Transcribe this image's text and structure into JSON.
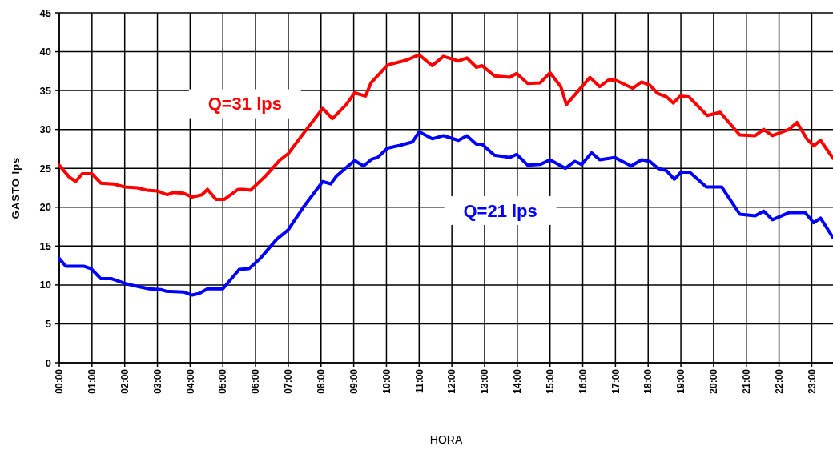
{
  "chart_data": {
    "type": "line",
    "xlabel": "HORA",
    "ylabel": "GASTO lps",
    "xlim": [
      0,
      23.65
    ],
    "ylim": [
      0,
      45
    ],
    "xticks": [
      {
        "value": 0,
        "label": "00:00"
      },
      {
        "value": 1,
        "label": "01:00"
      },
      {
        "value": 2,
        "label": "02:00"
      },
      {
        "value": 3,
        "label": "03:00"
      },
      {
        "value": 4,
        "label": "04:00"
      },
      {
        "value": 5,
        "label": "05:00"
      },
      {
        "value": 6,
        "label": "06:00"
      },
      {
        "value": 7,
        "label": "07:00"
      },
      {
        "value": 8,
        "label": "08:00"
      },
      {
        "value": 9,
        "label": "09:00"
      },
      {
        "value": 10,
        "label": "10:00"
      },
      {
        "value": 11,
        "label": "11:00"
      },
      {
        "value": 12,
        "label": "12:00"
      },
      {
        "value": 13,
        "label": "13:00"
      },
      {
        "value": 14,
        "label": "14:00"
      },
      {
        "value": 15,
        "label": "15:00"
      },
      {
        "value": 16,
        "label": "16:00"
      },
      {
        "value": 17,
        "label": "17:00"
      },
      {
        "value": 18,
        "label": "18:00"
      },
      {
        "value": 19,
        "label": "19:00"
      },
      {
        "value": 20,
        "label": "20:00"
      },
      {
        "value": 21,
        "label": "21:00"
      },
      {
        "value": 22,
        "label": "22:00"
      },
      {
        "value": 23,
        "label": "23:00"
      }
    ],
    "yticks": [
      0,
      5,
      10,
      15,
      20,
      25,
      30,
      35,
      40,
      45
    ],
    "grid": true,
    "marker": "none",
    "line_style": "solid",
    "series": [
      {
        "name": "Q=31 lps",
        "color": "#ff0000",
        "x": [
          0,
          0.3,
          0.5,
          0.7,
          1.0,
          1.27,
          1.65,
          2.0,
          2.38,
          2.67,
          3.0,
          3.3,
          3.47,
          3.8,
          4.06,
          4.36,
          4.53,
          4.79,
          5.04,
          5.47,
          5.64,
          5.85,
          6.3,
          6.75,
          7.0,
          7.5,
          8.05,
          8.35,
          8.77,
          9.03,
          9.36,
          9.53,
          10.04,
          10.6,
          11.0,
          11.4,
          11.74,
          12.2,
          12.46,
          12.75,
          12.92,
          13.3,
          13.77,
          13.98,
          14.32,
          14.7,
          15.0,
          15.33,
          15.5,
          16.22,
          16.52,
          16.8,
          17.02,
          17.53,
          17.8,
          18.05,
          18.3,
          18.56,
          18.77,
          18.98,
          19.24,
          19.8,
          20.2,
          20.8,
          21.27,
          21.53,
          21.8,
          22.3,
          22.55,
          22.85,
          23.06,
          23.27,
          23.65
        ],
        "values": [
          25.4,
          23.9,
          23.3,
          24.3,
          24.3,
          23.1,
          23.0,
          22.6,
          22.5,
          22.2,
          22.1,
          21.6,
          21.9,
          21.8,
          21.3,
          21.6,
          22.3,
          21.0,
          21.0,
          22.3,
          22.3,
          22.2,
          24.0,
          26.1,
          26.9,
          29.7,
          32.7,
          31.4,
          33.2,
          34.7,
          34.3,
          36.0,
          38.3,
          38.9,
          39.6,
          38.2,
          39.4,
          38.8,
          39.2,
          38.0,
          38.2,
          36.9,
          36.7,
          37.2,
          35.9,
          36.0,
          37.3,
          35.5,
          33.2,
          36.7,
          35.5,
          36.4,
          36.3,
          35.3,
          36.1,
          35.7,
          34.6,
          34.2,
          33.4,
          34.3,
          34.2,
          31.8,
          32.2,
          29.3,
          29.2,
          30.0,
          29.2,
          30.0,
          30.9,
          28.8,
          27.9,
          28.6,
          26.3
        ]
      },
      {
        "name": "Q=21 lps",
        "color": "#0000ff",
        "x": [
          0,
          0.2,
          0.76,
          0.97,
          1.27,
          1.6,
          2.0,
          2.4,
          2.75,
          3.1,
          3.26,
          3.8,
          4.06,
          4.28,
          4.53,
          5.0,
          5.5,
          5.8,
          6.14,
          6.65,
          7.0,
          7.46,
          8.05,
          8.3,
          8.47,
          8.8,
          9.03,
          9.3,
          9.56,
          9.73,
          10.03,
          10.36,
          10.8,
          11.0,
          11.4,
          11.74,
          12.2,
          12.46,
          12.75,
          12.92,
          13.3,
          13.77,
          13.98,
          14.32,
          14.7,
          15.0,
          15.47,
          15.76,
          15.97,
          16.27,
          16.52,
          16.98,
          17.48,
          17.8,
          18.05,
          18.3,
          18.56,
          18.8,
          19.0,
          19.27,
          19.78,
          20.25,
          20.8,
          21.27,
          21.53,
          21.8,
          22.3,
          22.8,
          23.06,
          23.27,
          23.65
        ],
        "values": [
          13.4,
          12.4,
          12.4,
          12.1,
          10.8,
          10.8,
          10.2,
          9.8,
          9.5,
          9.4,
          9.2,
          9.1,
          8.7,
          8.9,
          9.5,
          9.5,
          12.0,
          12.1,
          13.4,
          15.9,
          17.1,
          20.0,
          23.3,
          23.0,
          24.0,
          25.2,
          26.0,
          25.3,
          26.2,
          26.4,
          27.6,
          27.9,
          28.4,
          29.7,
          28.8,
          29.2,
          28.6,
          29.2,
          28.1,
          28.1,
          26.7,
          26.4,
          26.8,
          25.4,
          25.5,
          26.1,
          25.0,
          25.9,
          25.5,
          27.0,
          26.1,
          26.4,
          25.3,
          26.1,
          25.9,
          25.0,
          24.7,
          23.6,
          24.5,
          24.5,
          22.6,
          22.6,
          19.1,
          18.9,
          19.5,
          18.4,
          19.3,
          19.3,
          18.0,
          18.6,
          16.1
        ]
      }
    ]
  }
}
